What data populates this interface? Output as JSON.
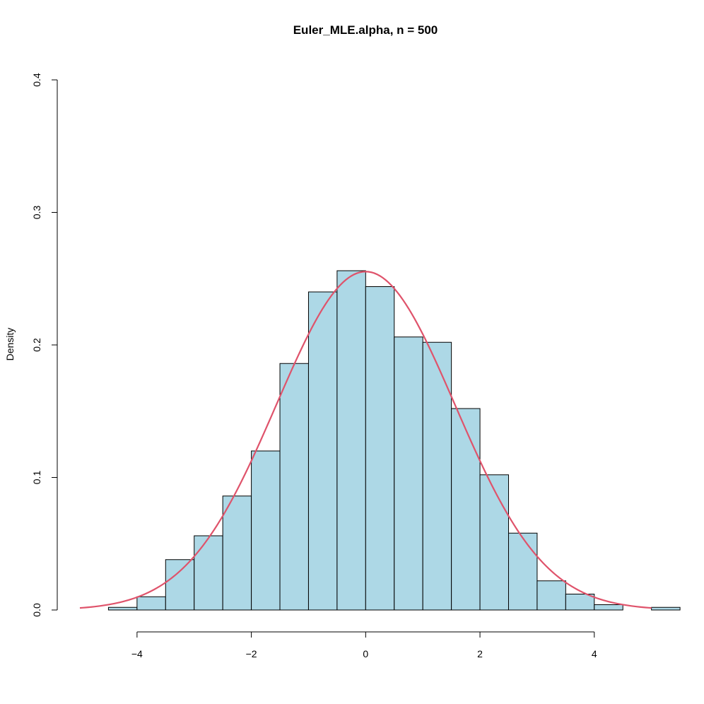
{
  "chart_data": {
    "type": "bar",
    "title": "Euler_MLE.alpha, n = 500",
    "xlabel": "",
    "ylabel": "Density",
    "xlim": [
      -5.0,
      5.4
    ],
    "ylim": [
      0,
      0.4
    ],
    "x_ticks": [
      -4,
      -2,
      0,
      2,
      4
    ],
    "x_tick_labels": [
      "−4",
      "−2",
      "0",
      "2",
      "4"
    ],
    "y_ticks": [
      0.0,
      0.1,
      0.2,
      0.3,
      0.4
    ],
    "y_tick_labels": [
      "0.0",
      "0.1",
      "0.2",
      "0.3",
      "0.4"
    ],
    "bin_width": 0.5,
    "bins": [
      {
        "start": -4.5,
        "end": -4.0,
        "density": 0.002
      },
      {
        "start": -4.0,
        "end": -3.5,
        "density": 0.01
      },
      {
        "start": -3.5,
        "end": -3.0,
        "density": 0.038
      },
      {
        "start": -3.0,
        "end": -2.5,
        "density": 0.056
      },
      {
        "start": -2.5,
        "end": -2.0,
        "density": 0.086
      },
      {
        "start": -2.0,
        "end": -1.5,
        "density": 0.12
      },
      {
        "start": -1.5,
        "end": -1.0,
        "density": 0.186
      },
      {
        "start": -1.0,
        "end": -0.5,
        "density": 0.24
      },
      {
        "start": -0.5,
        "end": 0.0,
        "density": 0.256
      },
      {
        "start": 0.0,
        "end": 0.5,
        "density": 0.244
      },
      {
        "start": 0.5,
        "end": 1.0,
        "density": 0.206
      },
      {
        "start": 1.0,
        "end": 1.5,
        "density": 0.202
      },
      {
        "start": 1.5,
        "end": 2.0,
        "density": 0.152
      },
      {
        "start": 2.0,
        "end": 2.5,
        "density": 0.102
      },
      {
        "start": 2.5,
        "end": 3.0,
        "density": 0.058
      },
      {
        "start": 3.0,
        "end": 3.5,
        "density": 0.022
      },
      {
        "start": 3.5,
        "end": 4.0,
        "density": 0.012
      },
      {
        "start": 4.0,
        "end": 4.5,
        "density": 0.004
      },
      {
        "start": 4.5,
        "end": 5.0,
        "density": 0.0
      },
      {
        "start": 5.0,
        "end": 5.5,
        "density": 0.002
      }
    ],
    "overlay": {
      "type": "line",
      "shape": "normal density",
      "mean": 0,
      "sd": 1.5625,
      "x_range": [
        -5,
        5
      ],
      "color": "#df536b"
    },
    "colors": {
      "bar_fill": "#add8e6",
      "bar_border": "#000000"
    },
    "grid": false,
    "legend": "none"
  }
}
